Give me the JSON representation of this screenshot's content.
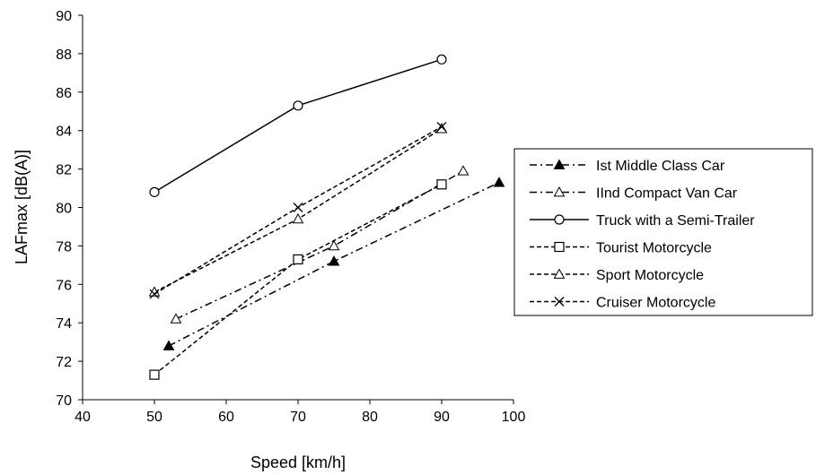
{
  "chart_data": {
    "type": "line",
    "title": "",
    "xlabel": "Speed [km/h]",
    "ylabel": "LAFmax [dB(A)]",
    "xlim": [
      40,
      100
    ],
    "ylim": [
      70,
      90
    ],
    "xticks": [
      40,
      50,
      60,
      70,
      80,
      90,
      100
    ],
    "yticks": [
      70,
      72,
      74,
      76,
      78,
      80,
      82,
      84,
      86,
      88,
      90
    ],
    "grid": false,
    "legend_position": "right",
    "series": [
      {
        "name": "Ist Middle Class Car",
        "marker": "triangle-filled",
        "dash": "dash-dot",
        "x": [
          52,
          75,
          98
        ],
        "y": [
          72.8,
          77.2,
          81.3
        ]
      },
      {
        "name": "IInd Compact Van Car",
        "marker": "triangle-open",
        "dash": "dash-dot",
        "x": [
          53,
          75,
          93
        ],
        "y": [
          74.2,
          78.0,
          81.9
        ]
      },
      {
        "name": "Truck with a Semi-Trailer",
        "marker": "circle-open",
        "dash": "solid",
        "x": [
          50,
          70,
          90
        ],
        "y": [
          80.8,
          85.3,
          87.7
        ]
      },
      {
        "name": "Tourist Motorcycle",
        "marker": "square-open",
        "dash": "dashed",
        "x": [
          50,
          70,
          90
        ],
        "y": [
          71.3,
          77.3,
          81.2
        ]
      },
      {
        "name": "Sport Motorcycle",
        "marker": "triangle-open",
        "dash": "dashed",
        "x": [
          50,
          70,
          90
        ],
        "y": [
          75.6,
          79.4,
          84.1
        ]
      },
      {
        "name": "Cruiser Motorcycle",
        "marker": "x",
        "dash": "dashed",
        "x": [
          50,
          70,
          90
        ],
        "y": [
          75.5,
          80.0,
          84.2
        ]
      }
    ]
  }
}
